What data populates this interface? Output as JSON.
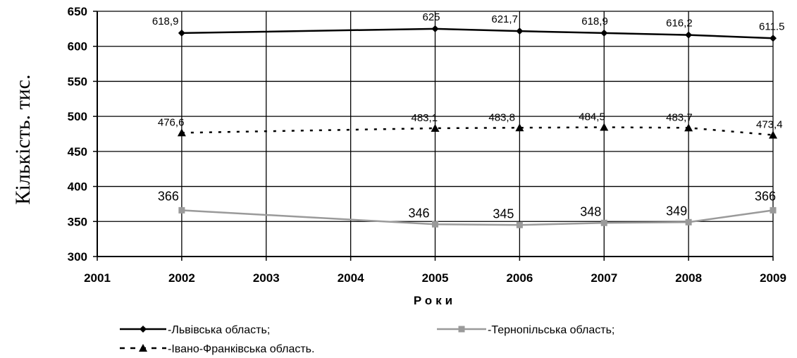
{
  "chart_data": {
    "type": "line",
    "xlabel": "Роки",
    "ylabel": "Кількість. тис.",
    "xlim": [
      2001,
      2009
    ],
    "ylim": [
      300,
      650
    ],
    "x_ticks": [
      "2001",
      "2002",
      "2003",
      "2004",
      "2005",
      "2006",
      "2007",
      "2008",
      "2009"
    ],
    "y_ticks": [
      "300",
      "350",
      "400",
      "450",
      "500",
      "550",
      "600",
      "650"
    ],
    "grid": true,
    "legend_position": "bottom",
    "x": [
      2002,
      2005,
      2006,
      2007,
      2008,
      2009
    ],
    "series": [
      {
        "name": "-Львівська область;",
        "values": [
          618.9,
          625,
          621.7,
          618.9,
          616.2,
          611.5
        ],
        "labels": [
          "618,9",
          "625",
          "621,7",
          "618,9",
          "616,2",
          "611.5"
        ],
        "color": "#000000",
        "marker": "diamond",
        "dash": "solid"
      },
      {
        "name": "-Тернопільська область;",
        "values": [
          366,
          346,
          345,
          348,
          349,
          366
        ],
        "labels": [
          "366",
          "346",
          "345",
          "348",
          "349",
          "366"
        ],
        "color": "#9a9a9a",
        "marker": "square",
        "dash": "solid"
      },
      {
        "name": "-Івано-Франківська область.",
        "values": [
          476.6,
          483.1,
          483.8,
          484.5,
          483.7,
          473.4
        ],
        "labels": [
          "476,6",
          "483,1",
          "483,8",
          "484,5",
          "483,7",
          "473,4"
        ],
        "color": "#000000",
        "marker": "triangle",
        "dash": "dashed"
      }
    ]
  }
}
